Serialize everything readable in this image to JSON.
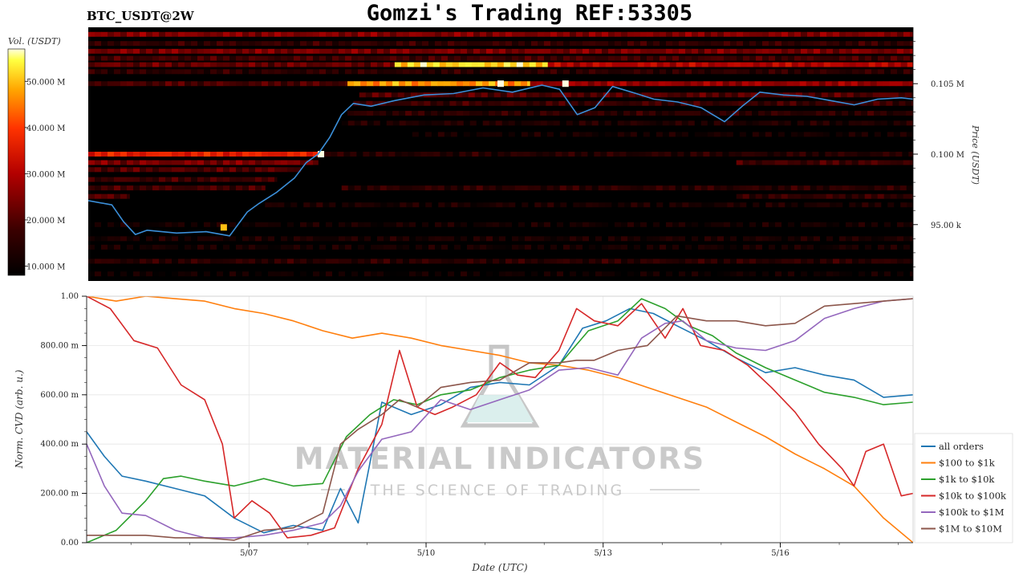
{
  "header": {
    "symbol": "BTC_USDT@2W",
    "title": "Gomzi's Trading REF:53305"
  },
  "watermark": {
    "name": "MATERIAL INDICATORS",
    "tagline": "THE SCIENCE OF TRADING"
  },
  "colors": {
    "all_orders": "#1f77b4",
    "100_to_1k": "#ff7f0e",
    "1k_to_10k": "#2ca02c",
    "10k_to_100k": "#d62728",
    "100k_to_1m": "#9467bd",
    "1m_to_10m": "#8c564b",
    "price_line": "#3b8fd9"
  },
  "chart_data": [
    {
      "type": "heatmap",
      "colorbar_label": "Vol. (USDT)",
      "colorbar_ticks": [
        "10.000 M",
        "20.000 M",
        "30.000 M",
        "40.000 M",
        "50.000 M"
      ],
      "colorbar_range": [
        8,
        57
      ],
      "ylabel": "Price (USDT)",
      "yticks": [
        {
          "value": 95000,
          "label": "95.00 k"
        },
        {
          "value": 100000,
          "label": "0.100 M"
        },
        {
          "value": 105000,
          "label": "0.105 M"
        }
      ],
      "ylim": [
        91000,
        109000
      ],
      "xlim": [
        0,
        14
      ],
      "grid": false,
      "bands": [
        {
          "price": 108500,
          "t0": 0,
          "t1": 14,
          "vol": 25
        },
        {
          "price": 107850,
          "t0": 0,
          "t1": 14,
          "vol": 16
        },
        {
          "price": 107300,
          "t0": 0,
          "t1": 14,
          "vol": 24
        },
        {
          "price": 106800,
          "t0": 0,
          "t1": 14,
          "vol": 18
        },
        {
          "price": 106350,
          "t0": 0,
          "t1": 5.2,
          "vol": 22
        },
        {
          "price": 106350,
          "t0": 5.2,
          "t1": 7.8,
          "vol": 52
        },
        {
          "price": 106350,
          "t0": 7.8,
          "t1": 14,
          "vol": 30
        },
        {
          "price": 105850,
          "t0": 0,
          "t1": 14,
          "vol": 15
        },
        {
          "price": 105000,
          "t0": 0,
          "t1": 4.4,
          "vol": 19
        },
        {
          "price": 105000,
          "t0": 4.4,
          "t1": 7.5,
          "vol": 47
        },
        {
          "price": 105000,
          "t0": 7.5,
          "t1": 14,
          "vol": 27
        },
        {
          "price": 104200,
          "t0": 4.6,
          "t1": 14,
          "vol": 20
        },
        {
          "price": 103600,
          "t0": 4.5,
          "t1": 14,
          "vol": 17
        },
        {
          "price": 102900,
          "t0": 4.4,
          "t1": 14,
          "vol": 15
        },
        {
          "price": 102200,
          "t0": 4.3,
          "t1": 14,
          "vol": 13
        },
        {
          "price": 101400,
          "t0": 5.5,
          "t1": 14,
          "vol": 11
        },
        {
          "price": 100000,
          "t0": 0,
          "t1": 3.9,
          "vol": 36
        },
        {
          "price": 100000,
          "t0": 3.9,
          "t1": 14,
          "vol": 14
        },
        {
          "price": 99400,
          "t0": 0,
          "t1": 3.9,
          "vol": 24
        },
        {
          "price": 99400,
          "t0": 11,
          "t1": 14,
          "vol": 18
        },
        {
          "price": 98900,
          "t0": 0,
          "t1": 3.6,
          "vol": 20
        },
        {
          "price": 98200,
          "t0": 0,
          "t1": 3.2,
          "vol": 18
        },
        {
          "price": 97600,
          "t0": 0,
          "t1": 3.0,
          "vol": 18
        },
        {
          "price": 97600,
          "t0": 4.3,
          "t1": 14,
          "vol": 15
        },
        {
          "price": 97000,
          "t0": 0,
          "t1": 0.7,
          "vol": 20
        },
        {
          "price": 97000,
          "t0": 11,
          "t1": 14,
          "vol": 16
        },
        {
          "price": 96400,
          "t0": 3,
          "t1": 14,
          "vol": 12
        },
        {
          "price": 95000,
          "t0": 0,
          "t1": 14,
          "vol": 11
        },
        {
          "price": 94000,
          "t0": 0,
          "t1": 14,
          "vol": 12
        },
        {
          "price": 93400,
          "t0": 0,
          "t1": 14,
          "vol": 11
        },
        {
          "price": 92400,
          "t0": 0,
          "t1": 14,
          "vol": 15
        },
        {
          "price": 91500,
          "t0": 0,
          "t1": 14,
          "vol": 10
        }
      ],
      "hotspots": [
        {
          "t": 8.1,
          "price": 105000,
          "vol": 57
        },
        {
          "t": 7.0,
          "price": 105000,
          "vol": 57
        },
        {
          "t": 3.95,
          "price": 100000,
          "vol": 57
        },
        {
          "t": 2.3,
          "price": 94800,
          "vol": 50
        }
      ],
      "price_series": {
        "x": [
          0,
          0.4,
          0.6,
          0.8,
          1.0,
          1.5,
          2.0,
          2.4,
          2.7,
          2.9,
          3.2,
          3.5,
          3.7,
          3.9,
          4.1,
          4.3,
          4.5,
          4.8,
          5.2,
          5.7,
          6.2,
          6.7,
          7.2,
          7.7,
          8.0,
          8.3,
          8.6,
          8.9,
          9.3,
          9.6,
          10.0,
          10.4,
          10.8,
          11.1,
          11.4,
          11.8,
          12.2,
          12.6,
          13.0,
          13.4,
          13.8,
          14.0
        ],
        "y": [
          96700,
          96400,
          95200,
          94300,
          94600,
          94400,
          94500,
          94200,
          95900,
          96500,
          97300,
          98300,
          99400,
          100000,
          101200,
          102800,
          103600,
          103400,
          103800,
          104200,
          104300,
          104700,
          104400,
          104900,
          104600,
          102800,
          103300,
          104800,
          104300,
          103900,
          103700,
          103300,
          102300,
          103400,
          104400,
          104200,
          104100,
          103800,
          103500,
          103900,
          104000,
          103900
        ]
      }
    },
    {
      "type": "line",
      "xlabel": "Date (UTC)",
      "ylabel": "Norm. CVD (arb. u.)",
      "xlim": [
        0,
        14
      ],
      "ylim": [
        0,
        1
      ],
      "xticks": [
        {
          "value": 2.75,
          "label": "5/07"
        },
        {
          "value": 5.75,
          "label": "5/10"
        },
        {
          "value": 8.75,
          "label": "5/13"
        },
        {
          "value": 11.75,
          "label": "5/16"
        }
      ],
      "yticks": [
        {
          "value": 0,
          "label": "0.00"
        },
        {
          "value": 0.2,
          "label": "200.00 m"
        },
        {
          "value": 0.4,
          "label": "400.00 m"
        },
        {
          "value": 0.6,
          "label": "600.00 m"
        },
        {
          "value": 0.8,
          "label": "800.00 m"
        },
        {
          "value": 1.0,
          "label": "1.00"
        }
      ],
      "grid": true,
      "legend_position": "right",
      "series": [
        {
          "name": "all orders",
          "color_key": "all_orders",
          "x": [
            0,
            0.3,
            0.6,
            1.0,
            1.5,
            2.0,
            2.5,
            3.0,
            3.5,
            4.0,
            4.3,
            4.6,
            5.0,
            5.5,
            6.0,
            6.5,
            7.0,
            7.5,
            8.0,
            8.4,
            8.8,
            9.2,
            9.6,
            10.0,
            10.5,
            11.0,
            11.5,
            12.0,
            12.5,
            13.0,
            13.5,
            14.0
          ],
          "y": [
            0.45,
            0.35,
            0.27,
            0.25,
            0.22,
            0.19,
            0.1,
            0.04,
            0.07,
            0.05,
            0.22,
            0.08,
            0.57,
            0.52,
            0.56,
            0.63,
            0.65,
            0.64,
            0.72,
            0.87,
            0.9,
            0.95,
            0.93,
            0.88,
            0.82,
            0.75,
            0.69,
            0.71,
            0.68,
            0.66,
            0.59,
            0.6
          ]
        },
        {
          "name": "$100 to $1k",
          "color_key": "100_to_1k",
          "x": [
            0,
            0.5,
            1.0,
            1.5,
            2.0,
            2.5,
            3.0,
            3.5,
            4.0,
            4.5,
            5.0,
            5.5,
            6.0,
            6.5,
            7.0,
            7.5,
            8.0,
            8.5,
            9.0,
            9.5,
            10.0,
            10.5,
            11.0,
            11.5,
            12.0,
            12.5,
            13.0,
            13.5,
            14.0
          ],
          "y": [
            1.0,
            0.98,
            1.0,
            0.99,
            0.98,
            0.95,
            0.93,
            0.9,
            0.86,
            0.83,
            0.85,
            0.83,
            0.8,
            0.78,
            0.76,
            0.73,
            0.72,
            0.7,
            0.67,
            0.63,
            0.59,
            0.55,
            0.49,
            0.43,
            0.36,
            0.3,
            0.23,
            0.1,
            0.0
          ]
        },
        {
          "name": "$1k to $10k",
          "color_key": "1k_to_10k",
          "x": [
            0,
            0.5,
            1.0,
            1.3,
            1.6,
            2.0,
            2.5,
            3.0,
            3.5,
            4.0,
            4.4,
            4.8,
            5.2,
            5.6,
            6.0,
            6.5,
            7.0,
            7.5,
            8.0,
            8.5,
            9.0,
            9.4,
            9.8,
            10.2,
            10.6,
            11.0,
            11.5,
            12.0,
            12.5,
            13.0,
            13.5,
            14.0
          ],
          "y": [
            0.0,
            0.05,
            0.17,
            0.26,
            0.27,
            0.25,
            0.23,
            0.26,
            0.23,
            0.24,
            0.43,
            0.52,
            0.58,
            0.56,
            0.6,
            0.62,
            0.67,
            0.7,
            0.72,
            0.86,
            0.9,
            0.99,
            0.95,
            0.88,
            0.84,
            0.77,
            0.71,
            0.66,
            0.61,
            0.59,
            0.56,
            0.57
          ]
        },
        {
          "name": "$10k to $100k",
          "color_key": "10k_to_100k",
          "x": [
            0,
            0.4,
            0.8,
            1.2,
            1.6,
            2.0,
            2.3,
            2.5,
            2.8,
            3.1,
            3.4,
            3.8,
            4.2,
            4.6,
            5.0,
            5.3,
            5.6,
            5.9,
            6.2,
            6.6,
            7.0,
            7.3,
            7.6,
            8.0,
            8.3,
            8.6,
            9.0,
            9.4,
            9.8,
            10.1,
            10.4,
            10.8,
            11.2,
            11.6,
            12.0,
            12.4,
            12.8,
            13.0,
            13.2,
            13.5,
            13.8,
            14.0
          ],
          "y": [
            1.0,
            0.95,
            0.82,
            0.79,
            0.64,
            0.58,
            0.4,
            0.1,
            0.17,
            0.12,
            0.02,
            0.03,
            0.06,
            0.3,
            0.48,
            0.78,
            0.55,
            0.52,
            0.55,
            0.6,
            0.73,
            0.68,
            0.67,
            0.78,
            0.95,
            0.9,
            0.88,
            0.97,
            0.83,
            0.95,
            0.8,
            0.78,
            0.72,
            0.63,
            0.53,
            0.4,
            0.3,
            0.23,
            0.37,
            0.4,
            0.19,
            0.2
          ]
        },
        {
          "name": "$100k to $1M",
          "color_key": "100k_to_1m",
          "x": [
            0,
            0.3,
            0.6,
            1.0,
            1.5,
            2.0,
            2.5,
            3.0,
            3.5,
            4.0,
            4.3,
            4.6,
            5.0,
            5.5,
            6.0,
            6.5,
            7.0,
            7.5,
            8.0,
            8.5,
            9.0,
            9.4,
            9.8,
            10.1,
            10.5,
            11.0,
            11.5,
            12.0,
            12.5,
            13.0,
            13.5,
            14.0
          ],
          "y": [
            0.4,
            0.23,
            0.12,
            0.11,
            0.05,
            0.02,
            0.02,
            0.03,
            0.05,
            0.08,
            0.15,
            0.29,
            0.42,
            0.45,
            0.58,
            0.54,
            0.58,
            0.62,
            0.7,
            0.71,
            0.68,
            0.83,
            0.89,
            0.9,
            0.82,
            0.79,
            0.78,
            0.82,
            0.91,
            0.95,
            0.98,
            0.99
          ]
        },
        {
          "name": "$1M to $10M",
          "color_key": "1m_to_10m",
          "x": [
            0,
            0.5,
            1.0,
            1.5,
            2.0,
            2.5,
            3.0,
            3.5,
            4.0,
            4.3,
            4.6,
            5.0,
            5.3,
            5.6,
            6.0,
            6.5,
            7.0,
            7.5,
            8.0,
            8.3,
            8.6,
            9.0,
            9.5,
            10.0,
            10.5,
            11.0,
            11.5,
            12.0,
            12.5,
            13.0,
            13.5,
            14.0
          ],
          "y": [
            0.03,
            0.03,
            0.03,
            0.02,
            0.02,
            0.01,
            0.05,
            0.06,
            0.12,
            0.4,
            0.46,
            0.52,
            0.58,
            0.55,
            0.63,
            0.65,
            0.66,
            0.73,
            0.73,
            0.74,
            0.74,
            0.78,
            0.8,
            0.92,
            0.9,
            0.9,
            0.88,
            0.89,
            0.96,
            0.97,
            0.98,
            0.99
          ]
        }
      ]
    }
  ]
}
